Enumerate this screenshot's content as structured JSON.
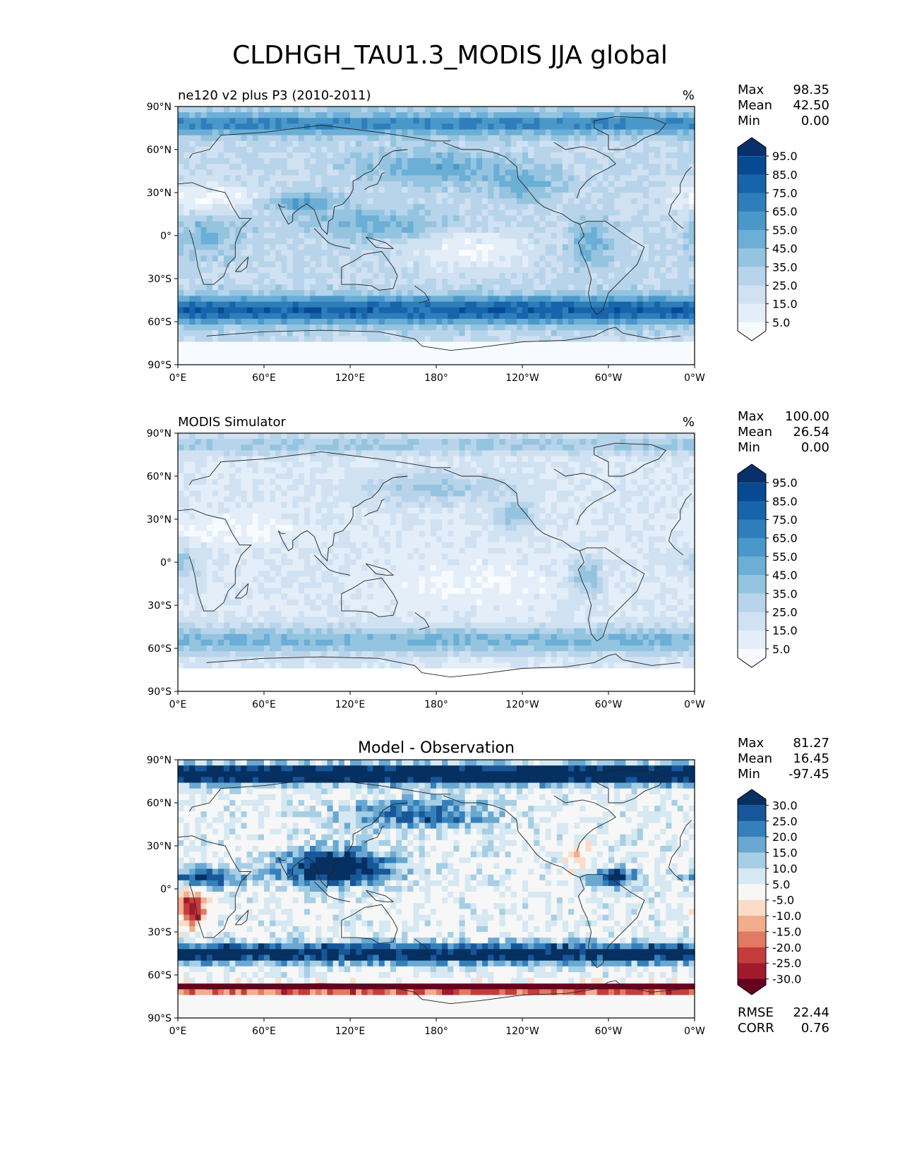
{
  "title": "CLDHGH_TAU1.3_MODIS JJA global",
  "colors": {
    "blues": [
      "#f7fbff",
      "#e3eef9",
      "#d0e1f2",
      "#b7d4ea",
      "#94c4df",
      "#6baed6",
      "#4a98c9",
      "#2e7ebc",
      "#1764ab",
      "#084a91",
      "#08306b"
    ],
    "diverging": [
      "#67001f",
      "#9f1a2c",
      "#c43c3c",
      "#e07b62",
      "#f2ad8f",
      "#fbdcc9",
      "#f7f7f7",
      "#d6e8f2",
      "#a6cee4",
      "#6aa8d1",
      "#3580b9",
      "#175699",
      "#053061"
    ],
    "coast": "#222222"
  },
  "chart_data": [
    {
      "type": "heatmap",
      "name": "test",
      "subtitle_left": "ne120 v2 plus P3 (2010-2011)",
      "subtitle_right": "%",
      "stats": [
        {
          "label": "Max",
          "value": "98.35"
        },
        {
          "label": "Mean",
          "value": "42.50"
        },
        {
          "label": "Min",
          "value": "0.00"
        }
      ],
      "colorbar_ticks": [
        "95.0",
        "85.0",
        "75.0",
        "65.0",
        "55.0",
        "45.0",
        "35.0",
        "25.0",
        "15.0",
        "5.0"
      ],
      "x_ticks": [
        "0°E",
        "60°E",
        "120°E",
        "180°",
        "120°W",
        "60°W",
        "0°W"
      ],
      "y_ticks": [
        "90°N",
        "60°N",
        "30°N",
        "0°",
        "30°S",
        "60°S",
        "90°S"
      ],
      "xlim": [
        0,
        360
      ],
      "ylim": [
        -90,
        90
      ],
      "units": "%"
    },
    {
      "type": "heatmap",
      "name": "reference",
      "subtitle_left": "MODIS Simulator",
      "subtitle_right": "%",
      "stats": [
        {
          "label": "Max",
          "value": "100.00"
        },
        {
          "label": "Mean",
          "value": "26.54"
        },
        {
          "label": "Min",
          "value": "0.00"
        }
      ],
      "colorbar_ticks": [
        "95.0",
        "85.0",
        "75.0",
        "65.0",
        "55.0",
        "45.0",
        "35.0",
        "25.0",
        "15.0",
        "5.0"
      ],
      "x_ticks": [
        "0°E",
        "60°E",
        "120°E",
        "180°",
        "120°W",
        "60°W",
        "0°W"
      ],
      "y_ticks": [
        "90°N",
        "60°N",
        "30°N",
        "0°",
        "30°S",
        "60°S",
        "90°S"
      ],
      "xlim": [
        0,
        360
      ],
      "ylim": [
        -90,
        90
      ],
      "units": "%"
    },
    {
      "type": "heatmap",
      "name": "difference",
      "subtitle_center": "Model - Observation",
      "stats": [
        {
          "label": "Max",
          "value": "81.27"
        },
        {
          "label": "Mean",
          "value": "16.45"
        },
        {
          "label": "Min",
          "value": "-97.45"
        }
      ],
      "metrics": [
        {
          "label": "RMSE",
          "value": "22.44"
        },
        {
          "label": "CORR",
          "value": "0.76"
        }
      ],
      "colorbar_ticks": [
        "30.0",
        "25.0",
        "20.0",
        "15.0",
        "10.0",
        "5.0",
        "-5.0",
        "-10.0",
        "-15.0",
        "-20.0",
        "-25.0",
        "-30.0"
      ],
      "x_ticks": [
        "0°E",
        "60°E",
        "120°E",
        "180°",
        "120°W",
        "60°W",
        "0°W"
      ],
      "y_ticks": [
        "90°N",
        "60°N",
        "30°N",
        "0°",
        "30°S",
        "60°S",
        "90°S"
      ],
      "xlim": [
        0,
        360
      ],
      "ylim": [
        -90,
        90
      ]
    }
  ]
}
